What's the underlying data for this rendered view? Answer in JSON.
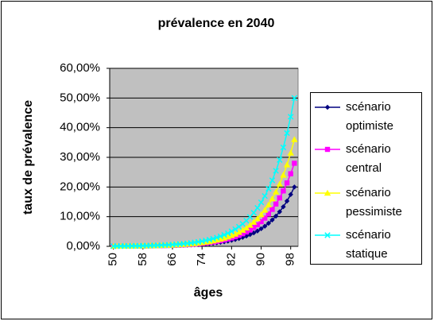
{
  "chart_data": {
    "type": "line",
    "title": "prévalence en 2040",
    "x_label": "âges",
    "y_label": "taux de prévalence",
    "x": [
      50,
      51,
      52,
      53,
      54,
      55,
      56,
      57,
      58,
      59,
      60,
      61,
      62,
      63,
      64,
      65,
      66,
      67,
      68,
      69,
      70,
      71,
      72,
      73,
      74,
      75,
      76,
      77,
      78,
      79,
      80,
      81,
      82,
      83,
      84,
      85,
      86,
      87,
      88,
      89,
      90,
      91,
      92,
      93,
      94,
      95,
      96,
      97,
      98,
      99
    ],
    "xlim": [
      49,
      100
    ],
    "xticks": [
      50,
      58,
      66,
      74,
      82,
      90,
      98
    ],
    "ylim": [
      0,
      60
    ],
    "yticks": [
      {
        "value": 0,
        "label": "0,00%"
      },
      {
        "value": 10,
        "label": "10,00%"
      },
      {
        "value": 20,
        "label": "20,00%"
      },
      {
        "value": 30,
        "label": "30,00%"
      },
      {
        "value": 40,
        "label": "40,00%"
      },
      {
        "value": 50,
        "label": "50,00%"
      },
      {
        "value": 60,
        "label": "60,00%"
      }
    ],
    "grid": true,
    "legend": "right",
    "series": [
      {
        "name": "scénario optimiste",
        "color": "#000080",
        "marker": "diamond",
        "values": [
          0.03,
          0.03,
          0.04,
          0.04,
          0.05,
          0.05,
          0.06,
          0.07,
          0.08,
          0.09,
          0.1,
          0.12,
          0.14,
          0.16,
          0.18,
          0.2,
          0.23,
          0.27,
          0.3,
          0.35,
          0.4,
          0.46,
          0.52,
          0.6,
          0.68,
          0.78,
          0.9,
          1.03,
          1.18,
          1.34,
          1.54,
          1.76,
          2.02,
          2.31,
          2.64,
          3.02,
          3.46,
          3.96,
          4.53,
          5.18,
          5.93,
          6.78,
          7.77,
          8.9,
          10.18,
          11.65,
          13.34,
          15.27,
          17.47,
          20
        ]
      },
      {
        "name": "scénario central",
        "color": "#ff00ff",
        "marker": "square",
        "values": [
          0.04,
          0.04,
          0.05,
          0.06,
          0.06,
          0.07,
          0.08,
          0.1,
          0.11,
          0.13,
          0.15,
          0.17,
          0.19,
          0.22,
          0.25,
          0.29,
          0.33,
          0.37,
          0.43,
          0.49,
          0.56,
          0.64,
          0.73,
          0.84,
          0.96,
          1.1,
          1.26,
          1.44,
          1.65,
          1.88,
          2.15,
          2.46,
          2.82,
          3.23,
          3.7,
          4.23,
          4.84,
          5.54,
          6.34,
          7.26,
          8.31,
          9.51,
          10.88,
          12.46,
          14.26,
          16.32,
          18.68,
          21.37,
          24.46,
          28
        ]
      },
      {
        "name": "scénario pessimiste",
        "color": "#ffff00",
        "marker": "triangle",
        "values": [
          0.05,
          0.05,
          0.06,
          0.07,
          0.08,
          0.09,
          0.11,
          0.12,
          0.14,
          0.16,
          0.19,
          0.21,
          0.24,
          0.28,
          0.32,
          0.37,
          0.42,
          0.48,
          0.55,
          0.63,
          0.72,
          0.82,
          0.94,
          1.08,
          1.23,
          1.41,
          1.61,
          1.85,
          2.12,
          2.42,
          2.77,
          3.17,
          3.63,
          4.15,
          4.75,
          5.44,
          6.22,
          7.12,
          8.15,
          9.33,
          10.67,
          12.22,
          13.98,
          16.02,
          18.33,
          20.98,
          24.01,
          27.48,
          31.45,
          36
        ]
      },
      {
        "name": "scénario statique",
        "color": "#00ffff",
        "marker": "x",
        "values": [
          0.07,
          0.08,
          0.09,
          0.1,
          0.12,
          0.13,
          0.15,
          0.17,
          0.2,
          0.23,
          0.26,
          0.3,
          0.34,
          0.39,
          0.45,
          0.51,
          0.58,
          0.67,
          0.76,
          0.87,
          1.0,
          1.14,
          1.31,
          1.5,
          1.71,
          1.96,
          2.24,
          2.56,
          2.94,
          3.36,
          3.85,
          4.4,
          5.05,
          5.78,
          6.61,
          7.56,
          8.65,
          9.89,
          11.32,
          12.96,
          14.82,
          16.96,
          19.43,
          22.24,
          25.46,
          29.12,
          33.35,
          38.17,
          43.68,
          50
        ]
      }
    ]
  }
}
